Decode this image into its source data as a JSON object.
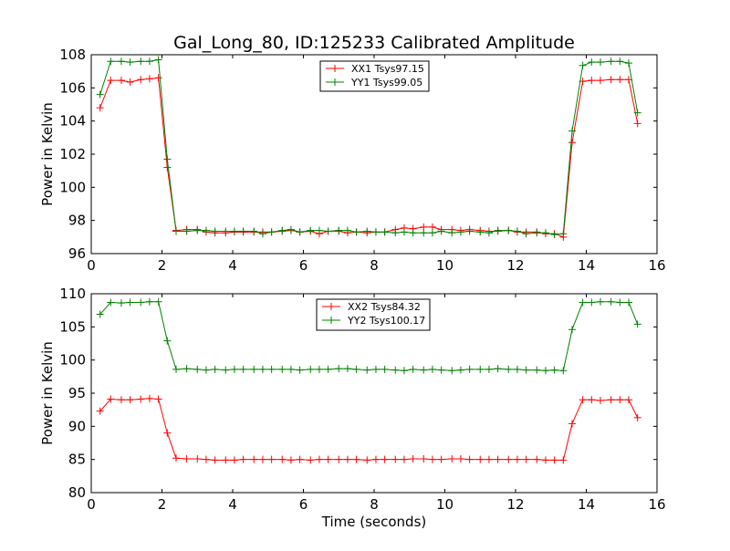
{
  "title": "Gal_Long_80, ID:125233 Calibrated Amplitude",
  "chart_data": [
    {
      "type": "line",
      "ylabel": "Power in Kelvin",
      "xlabel": "",
      "xlim": [
        0,
        16
      ],
      "ylim": [
        96,
        108
      ],
      "xticks": [
        "0",
        "2",
        "4",
        "6",
        "8",
        "10",
        "12",
        "14",
        "16"
      ],
      "yticks": [
        "96",
        "98",
        "100",
        "102",
        "104",
        "106",
        "108"
      ],
      "legend_position": "top-center",
      "x": [
        0.25,
        0.55,
        0.85,
        1.1,
        1.4,
        1.65,
        1.9,
        2.15,
        2.4,
        2.7,
        3.0,
        3.25,
        3.5,
        3.8,
        4.05,
        4.3,
        4.6,
        4.85,
        5.1,
        5.4,
        5.65,
        5.9,
        6.2,
        6.45,
        6.7,
        7.0,
        7.25,
        7.5,
        7.8,
        8.05,
        8.3,
        8.6,
        8.85,
        9.1,
        9.4,
        9.65,
        9.9,
        10.2,
        10.45,
        10.7,
        11.0,
        11.25,
        11.5,
        11.8,
        12.05,
        12.3,
        12.6,
        12.85,
        13.1,
        13.35,
        13.6,
        13.9,
        14.15,
        14.4,
        14.7,
        14.95,
        15.2,
        15.45
      ],
      "series": [
        {
          "name": "XX1 Tsys97.15",
          "color": "#ff0000",
          "values": [
            104.8,
            106.45,
            106.45,
            106.35,
            106.5,
            106.55,
            106.6,
            101.2,
            97.4,
            97.45,
            97.45,
            97.3,
            97.25,
            97.25,
            97.3,
            97.3,
            97.3,
            97.3,
            97.3,
            97.35,
            97.4,
            97.3,
            97.35,
            97.2,
            97.35,
            97.35,
            97.25,
            97.3,
            97.25,
            97.3,
            97.3,
            97.45,
            97.55,
            97.5,
            97.6,
            97.6,
            97.45,
            97.45,
            97.4,
            97.45,
            97.4,
            97.35,
            97.35,
            97.4,
            97.3,
            97.3,
            97.3,
            97.2,
            97.2,
            97.0,
            102.7,
            106.4,
            106.45,
            106.45,
            106.5,
            106.5,
            106.5,
            103.85
          ]
        },
        {
          "name": "YY1 Tsys99.05",
          "color": "#008000",
          "values": [
            105.6,
            107.6,
            107.6,
            107.55,
            107.6,
            107.6,
            107.7,
            101.7,
            97.35,
            97.35,
            97.4,
            97.4,
            97.35,
            97.35,
            97.35,
            97.35,
            97.35,
            97.2,
            97.3,
            97.4,
            97.45,
            97.3,
            97.4,
            97.4,
            97.35,
            97.4,
            97.4,
            97.3,
            97.35,
            97.3,
            97.3,
            97.25,
            97.3,
            97.25,
            97.25,
            97.25,
            97.35,
            97.25,
            97.3,
            97.35,
            97.3,
            97.25,
            97.4,
            97.4,
            97.35,
            97.2,
            97.25,
            97.25,
            97.15,
            97.2,
            103.4,
            107.35,
            107.55,
            107.55,
            107.6,
            107.6,
            107.5,
            104.5
          ]
        }
      ]
    },
    {
      "type": "line",
      "ylabel": "Power in Kelvin",
      "xlabel": "Time (seconds)",
      "xlim": [
        0,
        16
      ],
      "ylim": [
        80,
        110
      ],
      "xticks": [
        "0",
        "2",
        "4",
        "6",
        "8",
        "10",
        "12",
        "14",
        "16"
      ],
      "yticks": [
        "80",
        "85",
        "90",
        "95",
        "100",
        "105",
        "110"
      ],
      "legend_position": "top-center",
      "x": [
        0.25,
        0.55,
        0.85,
        1.1,
        1.4,
        1.65,
        1.9,
        2.15,
        2.4,
        2.7,
        3.0,
        3.25,
        3.5,
        3.8,
        4.05,
        4.3,
        4.6,
        4.85,
        5.1,
        5.4,
        5.65,
        5.9,
        6.2,
        6.45,
        6.7,
        7.0,
        7.25,
        7.5,
        7.8,
        8.05,
        8.3,
        8.6,
        8.85,
        9.1,
        9.4,
        9.65,
        9.9,
        10.2,
        10.45,
        10.7,
        11.0,
        11.25,
        11.5,
        11.8,
        12.05,
        12.3,
        12.6,
        12.85,
        13.1,
        13.35,
        13.6,
        13.9,
        14.15,
        14.4,
        14.7,
        14.95,
        15.2,
        15.45
      ],
      "series": [
        {
          "name": "XX2 Tsys84.32",
          "color": "#ff0000",
          "values": [
            92.3,
            94.1,
            94.0,
            94.0,
            94.1,
            94.2,
            94.1,
            89.0,
            85.2,
            85.1,
            85.1,
            85.0,
            84.9,
            84.9,
            84.9,
            85.0,
            85.0,
            85.0,
            85.0,
            85.0,
            84.9,
            85.0,
            84.9,
            85.0,
            85.0,
            85.0,
            85.0,
            85.0,
            84.9,
            85.0,
            85.0,
            85.0,
            85.0,
            85.1,
            85.1,
            85.0,
            85.0,
            85.1,
            85.1,
            85.0,
            85.0,
            85.0,
            85.0,
            85.0,
            85.0,
            85.0,
            85.0,
            84.9,
            84.9,
            84.9,
            90.4,
            94.0,
            94.0,
            93.9,
            94.0,
            94.0,
            94.0,
            91.3
          ]
        },
        {
          "name": "YY2 Tsys100.17",
          "color": "#008000",
          "values": [
            106.9,
            108.7,
            108.6,
            108.7,
            108.7,
            108.8,
            108.8,
            102.9,
            98.6,
            98.7,
            98.6,
            98.5,
            98.6,
            98.5,
            98.6,
            98.6,
            98.6,
            98.6,
            98.6,
            98.6,
            98.6,
            98.5,
            98.6,
            98.6,
            98.6,
            98.7,
            98.7,
            98.6,
            98.5,
            98.6,
            98.6,
            98.5,
            98.4,
            98.6,
            98.5,
            98.6,
            98.5,
            98.4,
            98.5,
            98.6,
            98.6,
            98.6,
            98.7,
            98.6,
            98.6,
            98.5,
            98.5,
            98.4,
            98.5,
            98.4,
            104.6,
            108.7,
            108.7,
            108.8,
            108.8,
            108.7,
            108.7,
            105.4
          ]
        }
      ]
    }
  ]
}
